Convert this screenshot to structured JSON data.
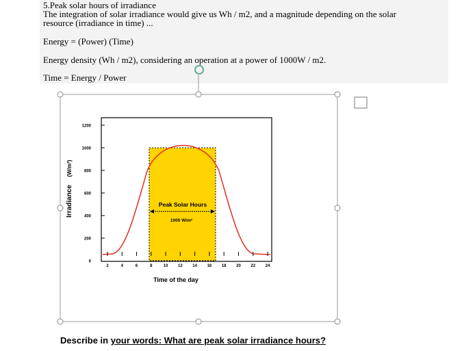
{
  "header": {
    "title": "5.Peak solar hours of irradiance"
  },
  "paragraphs": [
    "The integration of solar irradiance would give us Wh / m2, and a magnitude depending on the solar",
    "resource (irradiance in time) ...",
    "Energy = (Power) (Time)",
    "Energy density (Wh / m2), considering an operation at a power of 1000W / m2.",
    "Time = Energy / Power"
  ],
  "figure": {
    "y_label": "Irradiance",
    "y_unit": "(W/m²)",
    "yticks": [
      1200,
      1000,
      800,
      600,
      400,
      200,
      0
    ],
    "xticks": [
      2,
      4,
      6,
      8,
      10,
      12,
      14,
      16,
      18,
      20,
      22,
      24
    ],
    "x_label": "Time of the day",
    "band_label": "Peak Solar Hours",
    "band_value": "1000 W/m²"
  },
  "question": {
    "prefix": "Describe in",
    "text": "your words: What are peak solar irradiance hours?"
  }
}
